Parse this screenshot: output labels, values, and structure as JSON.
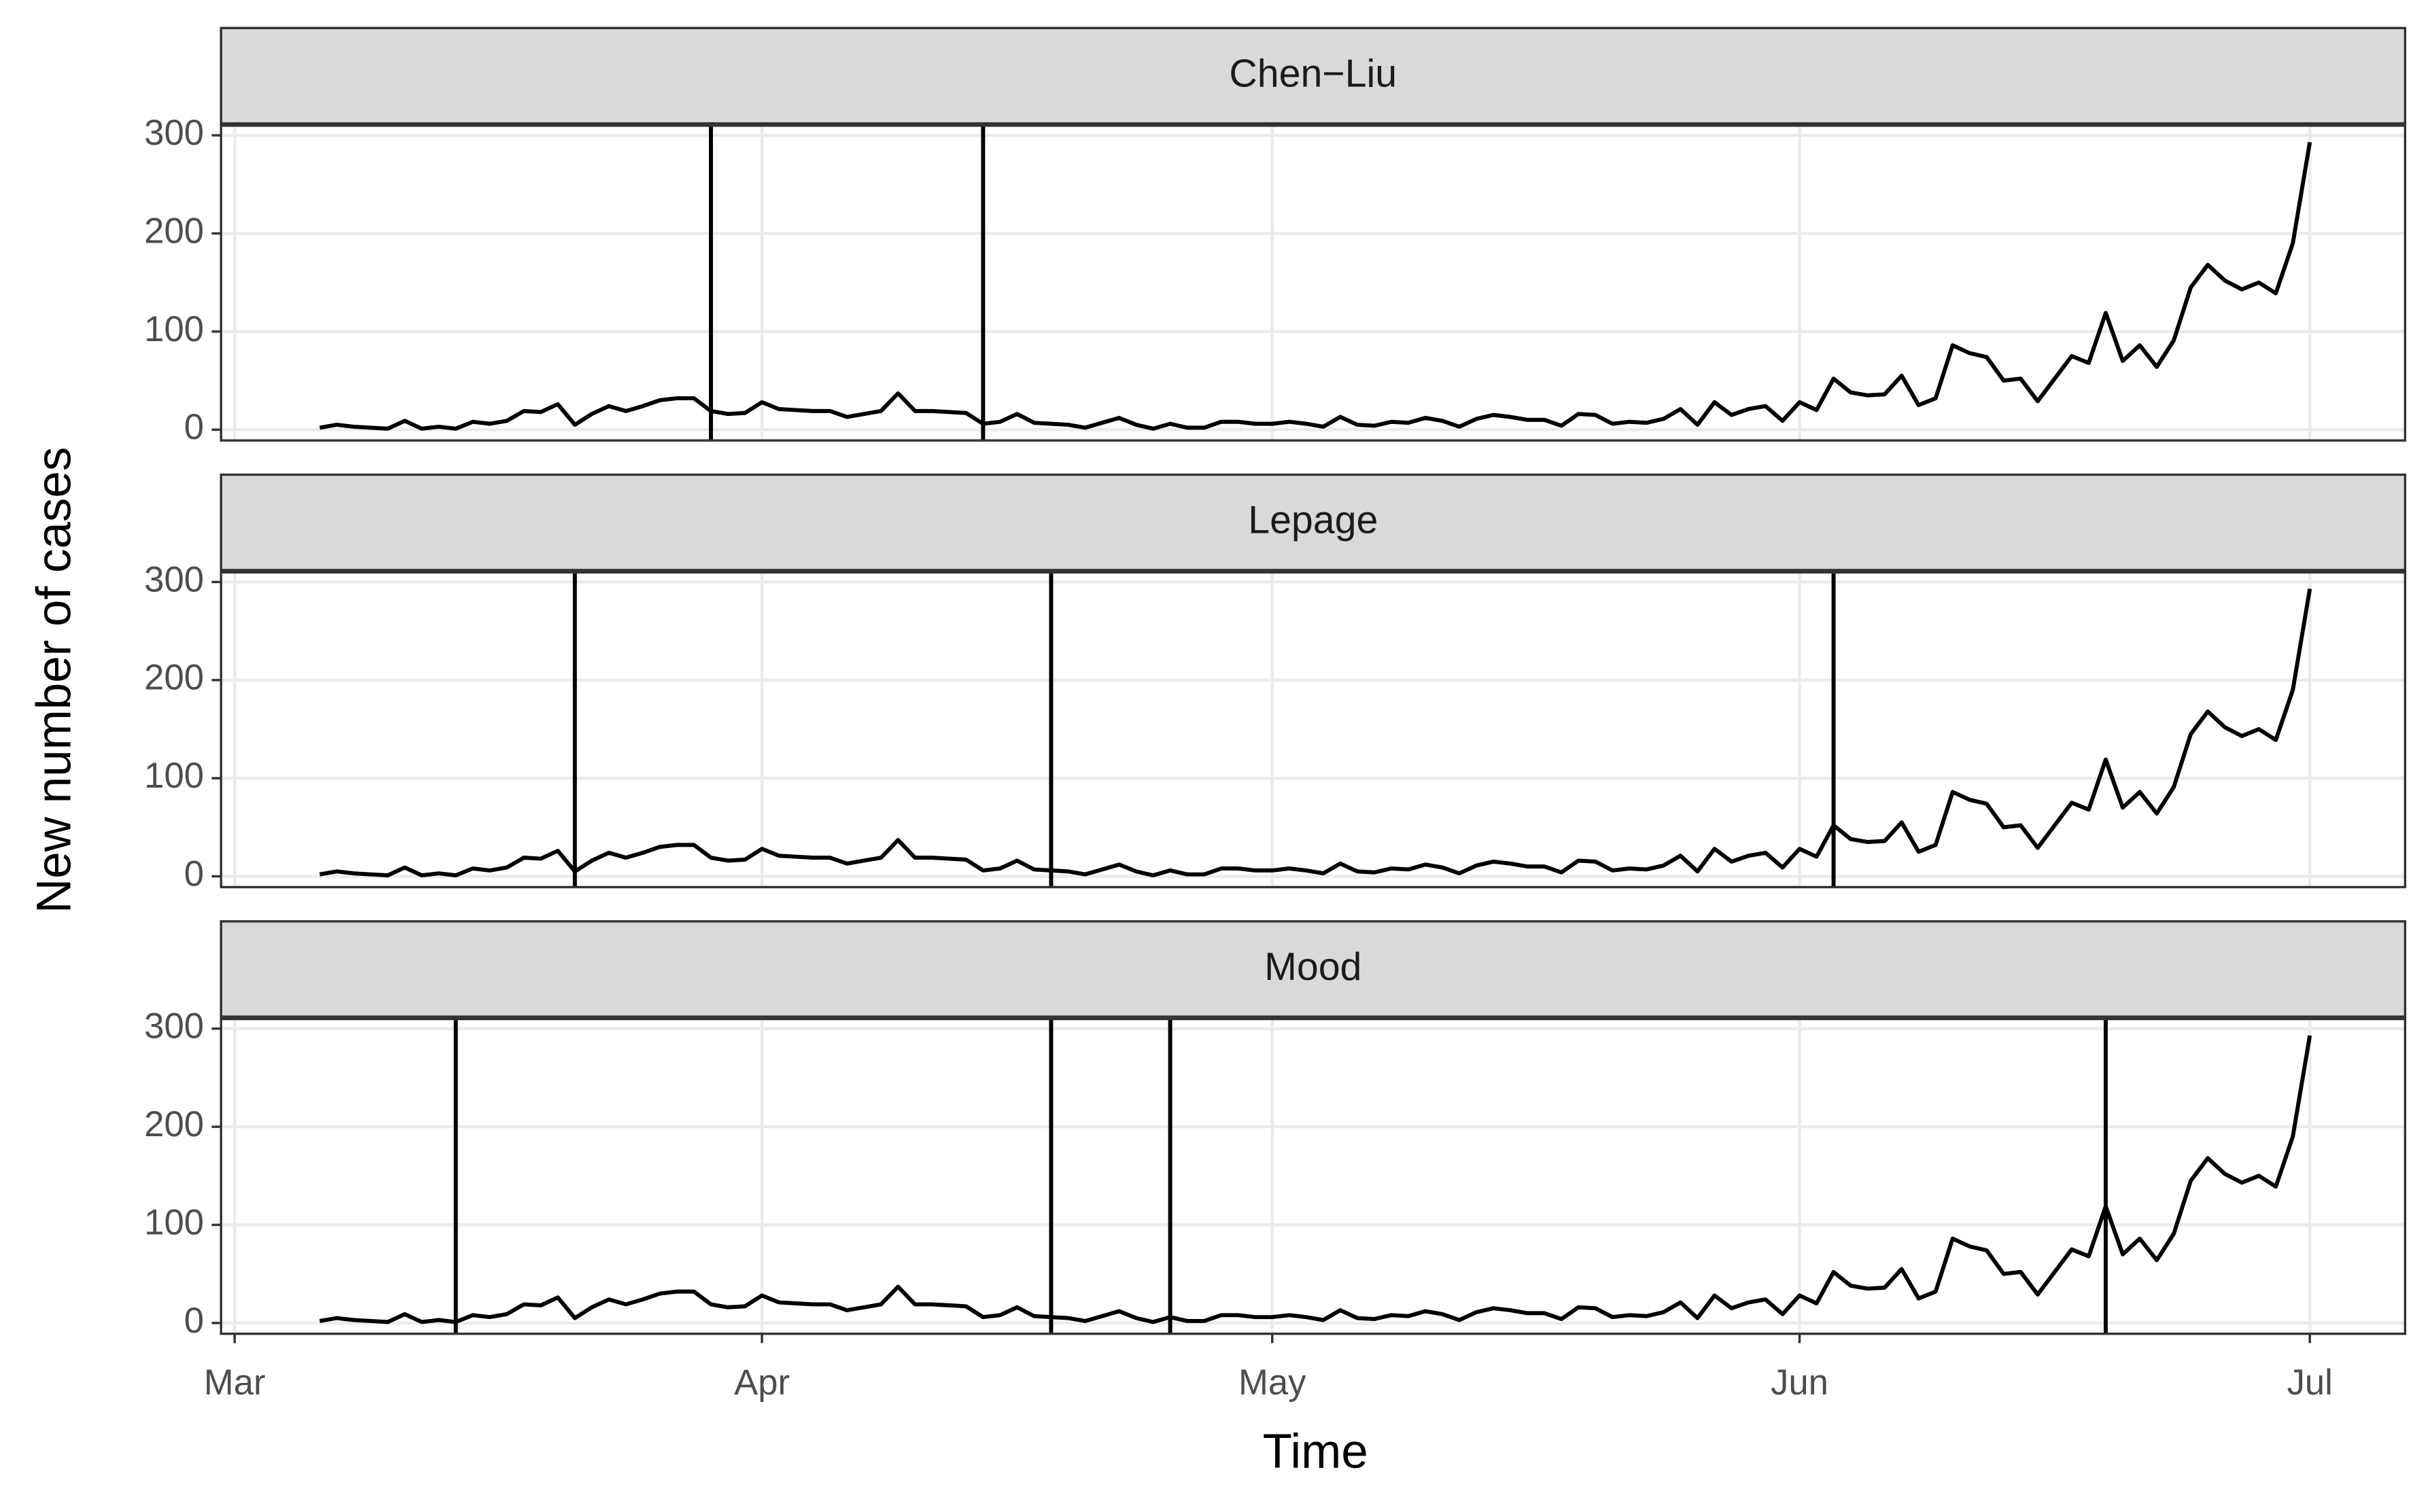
{
  "chart_data": {
    "type": "line",
    "xlabel": "Time",
    "ylabel": "New number of cases",
    "color": "#000000",
    "grid": true,
    "x": [
      5,
      6,
      7,
      8,
      9,
      10,
      11,
      12,
      13,
      14,
      15,
      16,
      17,
      18,
      19,
      20,
      21,
      22,
      23,
      24,
      25,
      26,
      27,
      28,
      29,
      30,
      31,
      32,
      33,
      34,
      35,
      36,
      37,
      38,
      39,
      40,
      41,
      42,
      43,
      44,
      45,
      46,
      47,
      48,
      49,
      50,
      51,
      52,
      53,
      54,
      55,
      56,
      57,
      58,
      59,
      60,
      61,
      62,
      63,
      64,
      65,
      66,
      67,
      68,
      69,
      70,
      71,
      72,
      73,
      74,
      75,
      76,
      77,
      78,
      79,
      80,
      81,
      82,
      83,
      84,
      85,
      86,
      87,
      88,
      89,
      90,
      91,
      92,
      93,
      94,
      95,
      96,
      97,
      98,
      99,
      100,
      101,
      102,
      103,
      104,
      105,
      106,
      107,
      108,
      109,
      110,
      111,
      112,
      113,
      114,
      115,
      116,
      117,
      118,
      119,
      120,
      121,
      122
    ],
    "values": [
      2,
      5,
      3,
      2,
      1,
      9,
      1,
      3,
      1,
      8,
      6,
      9,
      19,
      18,
      26,
      5,
      16,
      24,
      19,
      24,
      30,
      32,
      32,
      19,
      16,
      17,
      28,
      21,
      20,
      19,
      19,
      13,
      16,
      19,
      37,
      19,
      19,
      18,
      17,
      6,
      8,
      16,
      7,
      6,
      5,
      2,
      7,
      12,
      5,
      1,
      6,
      2,
      2,
      8,
      8,
      6,
      6,
      8,
      6,
      3,
      13,
      5,
      4,
      8,
      7,
      12,
      9,
      3,
      11,
      15,
      13,
      10,
      10,
      4,
      16,
      15,
      6,
      8,
      7,
      11,
      21,
      5,
      28,
      15,
      21,
      24,
      9,
      28,
      20,
      52,
      38,
      35,
      36,
      55,
      25,
      32,
      86,
      78,
      74,
      50,
      52,
      29,
      52,
      75,
      68,
      119,
      70,
      86,
      64,
      91,
      145,
      168,
      152,
      143,
      150,
      139,
      190,
      293
    ],
    "xlim": [
      -0.8,
      127.6
    ],
    "xticks": [
      {
        "value": 0,
        "label": "Mar"
      },
      {
        "value": 31,
        "label": "Apr"
      },
      {
        "value": 61,
        "label": "May"
      },
      {
        "value": 92,
        "label": "Jun"
      },
      {
        "value": 122,
        "label": "Jul"
      }
    ],
    "ylim": [
      -11,
      311
    ],
    "yticks": [
      0,
      100,
      200,
      300
    ],
    "panels": [
      {
        "title": "Chen−Liu",
        "vlines": [
          28,
          44
        ]
      },
      {
        "title": "Lepage",
        "vlines": [
          20,
          48,
          94
        ]
      },
      {
        "title": "Mood",
        "vlines": [
          13,
          48,
          55,
          110
        ]
      }
    ]
  }
}
